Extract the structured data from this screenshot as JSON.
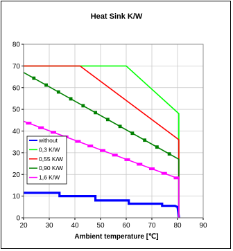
{
  "chart_data": {
    "type": "line",
    "title": "Heat Sink K/W",
    "xlabel": "Ambient temperature  [℃]",
    "ylabel": "",
    "xlim": [
      20,
      90
    ],
    "ylim": [
      0,
      80
    ],
    "x_ticks": [
      20,
      30,
      40,
      50,
      60,
      70,
      80,
      90
    ],
    "y_ticks": [
      0,
      10,
      20,
      30,
      40,
      50,
      60,
      70,
      80
    ],
    "grid": true,
    "legend_position": "lower-left",
    "series": [
      {
        "name": "without",
        "color": "#0000ff",
        "style": "step",
        "points": [
          [
            20,
            11.5
          ],
          [
            34,
            11.5
          ],
          [
            34,
            10
          ],
          [
            48,
            10
          ],
          [
            48,
            8
          ],
          [
            61,
            8
          ],
          [
            61,
            6.5
          ],
          [
            74,
            6.5
          ],
          [
            74,
            5.5
          ],
          [
            79,
            5.5
          ],
          [
            80,
            5
          ],
          [
            80.6,
            0
          ]
        ]
      },
      {
        "name": "0,3 K/W",
        "color": "#00ff00",
        "style": "line",
        "points": [
          [
            20,
            70
          ],
          [
            60,
            70
          ],
          [
            80.5,
            48
          ],
          [
            80.5,
            0
          ]
        ]
      },
      {
        "name": "0,55 K/W",
        "color": "#ff0000",
        "style": "line",
        "points": [
          [
            20,
            70
          ],
          [
            42,
            70
          ],
          [
            80.5,
            36
          ],
          [
            80.5,
            0
          ]
        ]
      },
      {
        "name": "0,90 K/W",
        "color": "#008000",
        "style": "line",
        "points": [
          [
            20,
            67
          ],
          [
            80.5,
            27
          ],
          [
            80.5,
            0
          ]
        ]
      },
      {
        "name": "1,6 K/W",
        "color": "#ff00ff",
        "style": "line",
        "points": [
          [
            20,
            44.5
          ],
          [
            80.5,
            18
          ],
          [
            80.5,
            0
          ]
        ]
      }
    ]
  }
}
